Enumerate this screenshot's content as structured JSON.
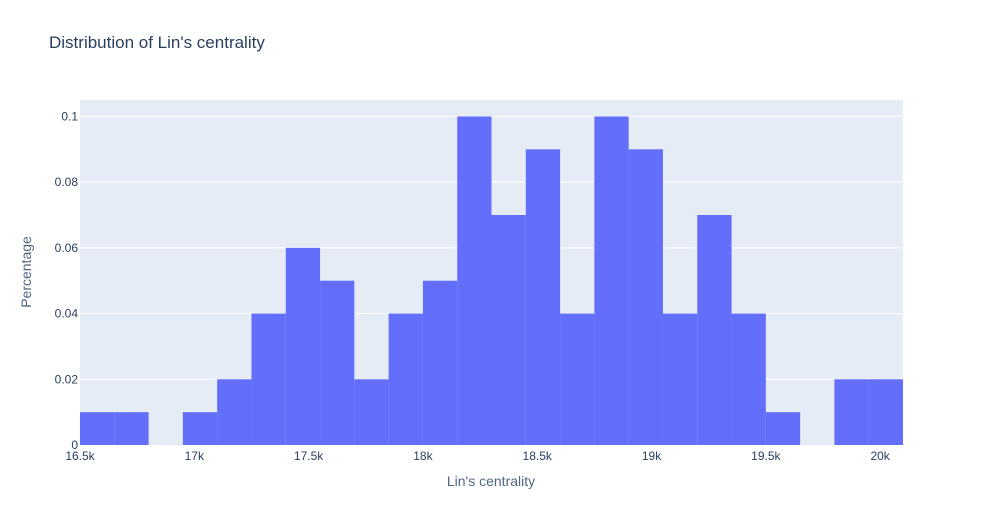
{
  "chart_data": {
    "type": "bar",
    "title": "Distribution of Lin's centrality",
    "xlabel": "Lin's centrality",
    "ylabel": "Percentage",
    "xlim": [
      16500,
      20100
    ],
    "ylim": [
      0,
      0.105
    ],
    "x_ticks": [
      16500,
      17000,
      17500,
      18000,
      18500,
      19000,
      19500,
      20000
    ],
    "x_tick_labels": [
      "16.5k",
      "17k",
      "17.5k",
      "18k",
      "18.5k",
      "19k",
      "19.5k",
      "20k"
    ],
    "y_ticks": [
      0,
      0.02,
      0.04,
      0.06,
      0.08,
      0.1
    ],
    "y_tick_labels": [
      "0",
      "0.02",
      "0.04",
      "0.06",
      "0.08",
      "0.1"
    ],
    "bin_width": 150,
    "bins": [
      {
        "start": 16500,
        "end": 16650,
        "value": 0.01
      },
      {
        "start": 16650,
        "end": 16800,
        "value": 0.01
      },
      {
        "start": 16800,
        "end": 16950,
        "value": 0
      },
      {
        "start": 16950,
        "end": 17100,
        "value": 0.01
      },
      {
        "start": 17100,
        "end": 17250,
        "value": 0.02
      },
      {
        "start": 17250,
        "end": 17400,
        "value": 0.04
      },
      {
        "start": 17400,
        "end": 17550,
        "value": 0.06
      },
      {
        "start": 17550,
        "end": 17700,
        "value": 0.05
      },
      {
        "start": 17700,
        "end": 17850,
        "value": 0.02
      },
      {
        "start": 17850,
        "end": 18000,
        "value": 0.04
      },
      {
        "start": 18000,
        "end": 18150,
        "value": 0.05
      },
      {
        "start": 18150,
        "end": 18300,
        "value": 0.1
      },
      {
        "start": 18300,
        "end": 18450,
        "value": 0.07
      },
      {
        "start": 18450,
        "end": 18600,
        "value": 0.09
      },
      {
        "start": 18600,
        "end": 18750,
        "value": 0.04
      },
      {
        "start": 18750,
        "end": 18900,
        "value": 0.1
      },
      {
        "start": 18900,
        "end": 19050,
        "value": 0.09
      },
      {
        "start": 19050,
        "end": 19200,
        "value": 0.04
      },
      {
        "start": 19200,
        "end": 19350,
        "value": 0.07
      },
      {
        "start": 19350,
        "end": 19500,
        "value": 0.04
      },
      {
        "start": 19500,
        "end": 19650,
        "value": 0.01
      },
      {
        "start": 19650,
        "end": 19800,
        "value": 0
      },
      {
        "start": 19800,
        "end": 19950,
        "value": 0.02
      },
      {
        "start": 19950,
        "end": 20100,
        "value": 0.02
      }
    ],
    "grid": true,
    "legend": false,
    "colors": {
      "bar": "#636efa",
      "plot_bg": "#e5ecf6",
      "grid": "#ffffff",
      "text": "#2a3f5f"
    }
  }
}
